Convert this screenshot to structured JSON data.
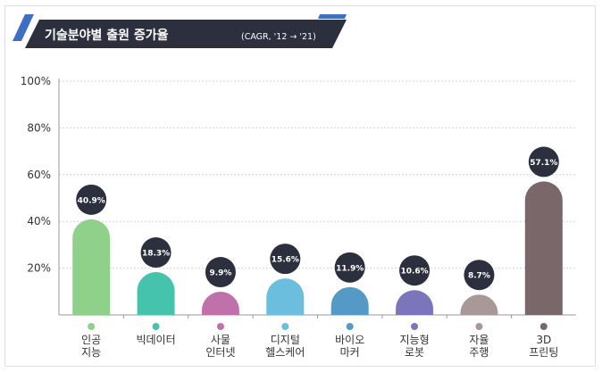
{
  "chart_data": {
    "type": "bar",
    "title": "기술분야별  출원 증가율",
    "subtitle": "(CAGR, '12 → '21)",
    "ylim": [
      0,
      100
    ],
    "yticks": [
      "100%",
      "80%",
      "60%",
      "40%",
      "20%"
    ],
    "ytick_values": [
      100,
      80,
      60,
      40,
      20
    ],
    "grid": true,
    "categories": [
      [
        "인공",
        "지능"
      ],
      [
        "빅데이터"
      ],
      [
        "사물",
        "인터넷"
      ],
      [
        "디지털",
        "헬스케어"
      ],
      [
        "바이오",
        "마커"
      ],
      [
        "지능형",
        "로봇"
      ],
      [
        "자율",
        "주행"
      ],
      [
        "3D",
        "프린팅"
      ]
    ],
    "values": [
      40.9,
      18.3,
      9.9,
      15.6,
      11.9,
      10.6,
      8.7,
      57.1
    ],
    "value_labels": [
      "40.9%",
      "18.3%",
      "9.9%",
      "15.6%",
      "11.9%",
      "10.6%",
      "8.7%",
      "57.1%"
    ],
    "colors": [
      "#8fd18b",
      "#45c3ad",
      "#c070ab",
      "#6bbedd",
      "#5599c6",
      "#7b76bc",
      "#a89897",
      "#7a6769"
    ],
    "bubble_color": "#2c2f3e",
    "header_color": "#2c2f3e",
    "header_accent": "#3f6fc2"
  }
}
